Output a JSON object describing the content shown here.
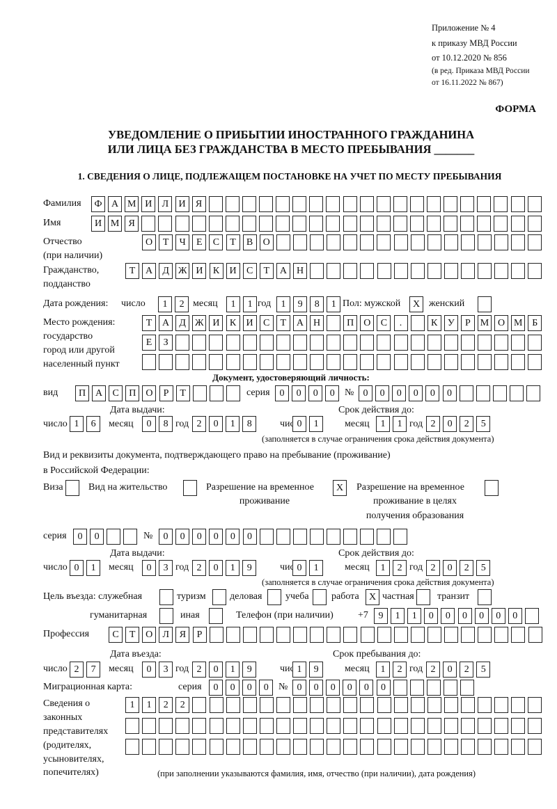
{
  "header": {
    "appendix": "Приложение № 4",
    "order": "к приказу МВД России",
    "order_date": "от 10.12.2020 № 856",
    "edition_1": "(в ред. Приказа МВД России",
    "edition_2": "от 16.11.2022 № 867)",
    "form_label": "ФОРМА",
    "title_1": "УВЕДОМЛЕНИЕ О ПРИБЫТИИ ИНОСТРАННОГО ГРАЖДАНИНА",
    "title_2": "ИЛИ ЛИЦА БЕЗ ГРАЖДАНСТВА В МЕСТО ПРЕБЫВАНИЯ _______"
  },
  "section_1": {
    "heading": "1. СВЕДЕНИЯ О ЛИЦЕ, ПОДЛЕЖАЩЕМ ПОСТАНОВКЕ НА УЧЕТ ПО МЕСТУ ПРЕБЫВАНИЯ",
    "labels": {
      "surname": "Фамилия",
      "name": "Имя",
      "patronymic": "Отчество",
      "patronymic_note": "(при наличии)",
      "citizenship": "Гражданство,",
      "citizenship_2": "подданство",
      "birth_date": "Дата рождения:",
      "day": "число",
      "month": "месяц",
      "year": "год",
      "sex": "Пол: мужской",
      "female": "женский",
      "birth_place": "Место рождения:",
      "state": "государство",
      "city": "город или другой",
      "settlement": "населенный пункт",
      "id_doc": "Документ, удостоверяющий личность:",
      "kind": "вид",
      "series": "серия",
      "number": "№",
      "issue_date": "Дата выдачи:",
      "valid_until": "Срок действия до:",
      "validity_note": "(заполняется в случае ограничения срока действия документа)",
      "stay_doc_1": "Вид и реквизиты документа, подтверждающего право на пребывание (проживание)",
      "stay_doc_2": "в Российской Федерации:",
      "visa": "Виза",
      "residence_permit": "Вид на жительство",
      "temp_permit_1": "Разрешение на временное",
      "temp_permit_2": "проживание",
      "temp_edu_1": "Разрешение на временное",
      "temp_edu_2": "проживание в целях",
      "temp_edu_3": "получения образования",
      "purpose": "Цель въезда: служебная",
      "tourism": "туризм",
      "business": "деловая",
      "study": "учеба",
      "work": "работа",
      "private": "частная",
      "transit": "транзит",
      "humanitarian": "гуманитарная",
      "other": "иная",
      "phone": "Телефон (при наличии)",
      "phone_prefix": "+7",
      "profession": "Профессия",
      "entry_date": "Дата въезда:",
      "stay_until": "Срок пребывания до:",
      "migration_card": "Миграционная карта:",
      "reps_1": "Сведения о",
      "reps_2": "законных",
      "reps_3": "представителях",
      "reps_4": "(родителях,",
      "reps_5": "усыновителях,",
      "reps_6": "попечителях)",
      "reps_note": "(при заполнении указываются фамилия, имя, отчество (при наличии), дата рождения)"
    },
    "values": {
      "surname": "ФАМИЛИЯ",
      "name": "ИМЯ",
      "patronymic": "ОТЧЕСТВО",
      "citizenship": "ТАДЖИКИСТАН",
      "birth_day": "12",
      "birth_month": "11",
      "birth_year": "1981",
      "sex_male": "X",
      "sex_female": "",
      "birth_place_1": "ТАДЖИКИСТАН ПОС. КУРМОМБ",
      "birth_place_2": "ЕЗ",
      "birth_place_3": "",
      "id_kind": "ПАСПОРТ",
      "id_series": "0000",
      "id_number": "000000",
      "id_issue_day": "16",
      "id_issue_month": "08",
      "id_issue_year": "2018",
      "id_valid_day": "01",
      "id_valid_month": "11",
      "id_valid_year": "2025",
      "visa": "",
      "residence_permit": "",
      "temp_permit": "X",
      "temp_edu": "",
      "stay_series": "00",
      "stay_number": "000000",
      "stay_issue_day": "01",
      "stay_issue_month": "03",
      "stay_issue_year": "2019",
      "stay_valid_day": "01",
      "stay_valid_month": "12",
      "stay_valid_year": "2025",
      "purpose_service": "",
      "purpose_tourism": "",
      "purpose_business": "",
      "purpose_study": "",
      "purpose_work": "X",
      "purpose_private": "",
      "purpose_transit": "",
      "purpose_humanitarian": "",
      "purpose_other": "",
      "phone": "911000000",
      "profession": "СТОЛЯР",
      "entry_day": "27",
      "entry_month": "03",
      "entry_year": "2019",
      "stay_until_day": "19",
      "stay_until_month": "12",
      "stay_until_year": "2025",
      "mig_series": "0000",
      "mig_number": "000000",
      "reps_1": "1122",
      "reps_2": "",
      "reps_3": ""
    }
  }
}
